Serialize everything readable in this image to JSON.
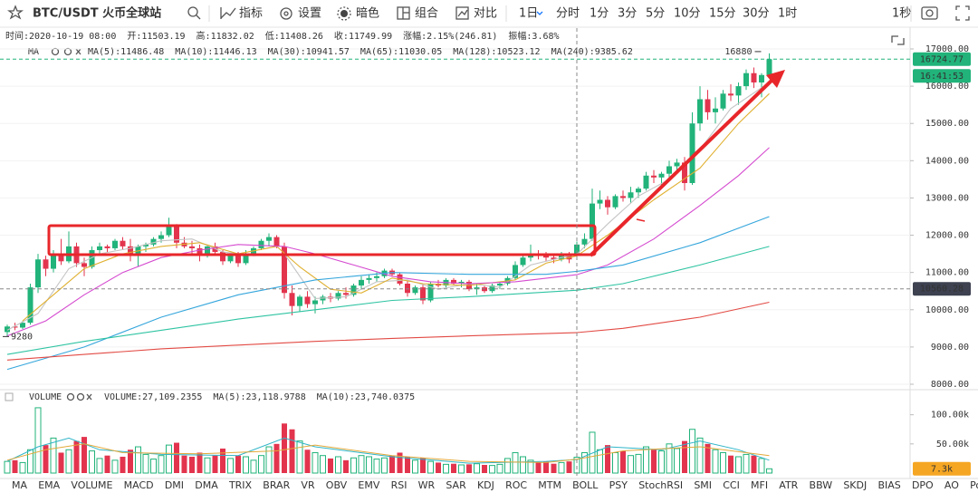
{
  "toolbar": {
    "symbol": "BTC/USDT 火币全球站",
    "tools": [
      "指标",
      "设置",
      "暗色",
      "组合",
      "对比"
    ],
    "intervals": [
      "1日",
      "分时",
      "1分",
      "3分",
      "5分",
      "10分",
      "15分",
      "30分",
      "1时"
    ],
    "clock": "1秒"
  },
  "info": [
    "时间:2020-10-19 08:00",
    "开:11503.19",
    "高:11832.02",
    "低:11408.26",
    "收:11749.99",
    "涨幅:2.15%(246.81)",
    "振幅:3.68%"
  ],
  "chart_data": [
    {
      "type": "candlestick",
      "legend_title": "MA",
      "open": [
        9400,
        9550,
        9520,
        9650,
        10600,
        11350,
        11100,
        11500,
        11300,
        11700,
        11250,
        11150,
        11600,
        11700,
        11650,
        11850,
        11700,
        11450,
        11700,
        11750,
        11900,
        12000,
        12250,
        11800,
        11700,
        11650,
        11500,
        11700,
        11550,
        11300,
        11450,
        11250,
        11500,
        11650,
        11850,
        11950,
        11700,
        10450,
        10100,
        10350,
        10150,
        10250,
        10350,
        10300,
        10450,
        10400,
        10650,
        10800,
        10850,
        10900,
        11050,
        10950,
        10700,
        10450,
        10600,
        10250,
        10700,
        10650,
        10800,
        10700,
        10750,
        10550,
        10600,
        10500,
        10650,
        10700,
        10850,
        11200,
        11400,
        11500,
        11450,
        11400,
        11350,
        11450,
        11503.19,
        11750,
        11900,
        12850,
        12950,
        12750,
        13050,
        13000,
        13150,
        13250,
        13600,
        13550,
        13650,
        13850,
        13950,
        13400,
        15000,
        15650,
        15300,
        15400,
        15800,
        15750,
        16000,
        16350,
        16100,
        16300
      ],
      "high": [
        9600,
        9650,
        9700,
        10700,
        11500,
        11450,
        11600,
        11900,
        12100,
        11800,
        11400,
        11700,
        11800,
        11750,
        11900,
        11950,
        11900,
        11750,
        11800,
        11950,
        12100,
        12470,
        12300,
        11950,
        11850,
        11750,
        11750,
        11800,
        11600,
        11500,
        11550,
        11600,
        11700,
        11900,
        12050,
        12000,
        11800,
        10650,
        10400,
        10500,
        10350,
        10400,
        10450,
        10500,
        10600,
        10700,
        10900,
        10950,
        11000,
        11100,
        11100,
        11000,
        10800,
        10650,
        10700,
        10750,
        10800,
        10850,
        10850,
        10800,
        10800,
        10700,
        10650,
        10700,
        10750,
        10900,
        11300,
        11500,
        11750,
        11600,
        11550,
        11500,
        11550,
        11550,
        11832.02,
        12050,
        13250,
        13200,
        13050,
        13100,
        13200,
        13300,
        13300,
        13700,
        13750,
        13700,
        14000,
        14050,
        14100,
        15300,
        16000,
        15900,
        15700,
        15900,
        16050,
        16100,
        16450,
        16500,
        16350,
        16880
      ],
      "low": [
        9280,
        9450,
        9480,
        9600,
        10450,
        10900,
        11000,
        11200,
        11250,
        11150,
        10900,
        11100,
        11500,
        11550,
        11600,
        11600,
        11300,
        11150,
        11550,
        11700,
        11800,
        11950,
        11650,
        11650,
        11500,
        11300,
        11400,
        11450,
        11200,
        11250,
        11150,
        11200,
        11450,
        11600,
        11700,
        11650,
        10300,
        9850,
        9950,
        10050,
        9900,
        10150,
        10200,
        10250,
        10300,
        10350,
        10550,
        10700,
        10750,
        10850,
        10900,
        10650,
        10350,
        10400,
        10150,
        10200,
        10600,
        10600,
        10650,
        10600,
        10500,
        10400,
        10450,
        10450,
        10550,
        10650,
        10800,
        11150,
        11300,
        11350,
        11300,
        11250,
        11300,
        11250,
        11408.26,
        11650,
        11850,
        12700,
        12550,
        12700,
        12900,
        12850,
        13000,
        13200,
        13400,
        13300,
        13550,
        13700,
        13200,
        13350,
        14800,
        15100,
        15000,
        15350,
        15600,
        15500,
        15900,
        15950,
        15700,
        16250
      ],
      "close": [
        9550,
        9520,
        9650,
        10600,
        11350,
        11100,
        11500,
        11300,
        11700,
        11250,
        11150,
        11600,
        11700,
        11650,
        11850,
        11700,
        11450,
        11700,
        11750,
        11900,
        12000,
        12250,
        11800,
        11700,
        11650,
        11500,
        11700,
        11550,
        11300,
        11450,
        11250,
        11500,
        11650,
        11850,
        11950,
        11700,
        10450,
        10100,
        10350,
        10150,
        10250,
        10350,
        10300,
        10450,
        10400,
        10650,
        10800,
        10850,
        10900,
        11050,
        10950,
        10700,
        10450,
        10600,
        10250,
        10700,
        10650,
        10800,
        10700,
        10750,
        10550,
        10600,
        10500,
        10650,
        10700,
        10850,
        11200,
        11400,
        11500,
        11450,
        11400,
        11350,
        11450,
        11350,
        11749.99,
        11900,
        12850,
        12950,
        12750,
        13050,
        13000,
        13150,
        13250,
        13600,
        13550,
        13650,
        13850,
        13950,
        13400,
        15000,
        15650,
        15300,
        15400,
        15800,
        15750,
        16000,
        16350,
        16100,
        16300,
        16724.77
      ],
      "up_color": "#21b37a",
      "down_color": "#e3344e",
      "ylim": [
        7854,
        17559
      ],
      "yticks": [
        {
          "value": 17000,
          "label": "17000.00"
        },
        {
          "value": 16000,
          "label": "16000.00"
        },
        {
          "value": 15000,
          "label": "15000.00"
        },
        {
          "value": 14000,
          "label": "14000.00"
        },
        {
          "value": 13000,
          "label": "13000.00"
        },
        {
          "value": 12000,
          "label": "12000.00"
        },
        {
          "value": 11000,
          "label": "11000.00"
        },
        {
          "value": 10000,
          "label": "10000.00"
        },
        {
          "value": 9000,
          "label": "9000.00"
        },
        {
          "value": 8000,
          "label": "8000.00"
        }
      ],
      "grid": true,
      "series": [
        {
          "name": "MA(5):11486.48",
          "color": "#c4c4c4",
          "x": [
            0,
            4,
            8,
            12,
            16,
            20,
            24,
            28,
            32,
            36,
            40,
            44,
            48,
            52,
            56,
            60,
            64,
            68,
            72,
            74,
            78,
            82,
            86,
            90,
            94,
            99
          ],
          "values": [
            9450,
            9900,
            11100,
            11500,
            11650,
            11850,
            11900,
            11550,
            11450,
            11500,
            10300,
            10350,
            10750,
            10800,
            10550,
            10700,
            10600,
            11200,
            11400,
            11486.48,
            12300,
            13050,
            13500,
            14300,
            15400,
            16100
          ]
        },
        {
          "name": "MA(10):11446.13",
          "color": "#e0b030",
          "x": [
            2,
            6,
            10,
            15,
            20,
            25,
            30,
            35,
            38,
            42,
            46,
            50,
            54,
            60,
            66,
            70,
            74,
            78,
            84,
            90,
            95,
            99
          ],
          "values": [
            9700,
            10400,
            11100,
            11500,
            11700,
            11800,
            11500,
            11700,
            11150,
            10550,
            10450,
            10850,
            10700,
            10650,
            10800,
            11250,
            11446.13,
            12000,
            12950,
            13800,
            15000,
            15800
          ]
        },
        {
          "name": "MA(30):10941.57",
          "color": "#d54bd0",
          "x": [
            0,
            5,
            10,
            15,
            20,
            25,
            30,
            36,
            40,
            45,
            50,
            55,
            60,
            66,
            74,
            78,
            84,
            90,
            95,
            99
          ],
          "values": [
            9300,
            9700,
            10400,
            11000,
            11400,
            11600,
            11750,
            11700,
            11500,
            11200,
            10900,
            10750,
            10700,
            10750,
            10941.57,
            11200,
            11900,
            12800,
            13600,
            14350
          ]
        },
        {
          "name": "MA(65):11030.05",
          "color": "#35a6dc",
          "x": [
            0,
            10,
            20,
            30,
            40,
            50,
            60,
            70,
            74,
            80,
            90,
            99
          ],
          "values": [
            8400,
            9000,
            9800,
            10400,
            10800,
            11000,
            10950,
            10950,
            11030.05,
            11200,
            11800,
            12500
          ]
        },
        {
          "name": "MA(128):10523.12",
          "color": "#2fc4a2",
          "x": [
            0,
            10,
            20,
            30,
            40,
            50,
            60,
            74,
            80,
            90,
            99
          ],
          "values": [
            8800,
            9150,
            9450,
            9750,
            10000,
            10250,
            10350,
            10523.12,
            10700,
            11200,
            11700
          ]
        },
        {
          "name": "MA(240):9385.62",
          "color": "#e24a44",
          "x": [
            0,
            10,
            20,
            30,
            40,
            50,
            60,
            74,
            80,
            90,
            99
          ],
          "values": [
            8650,
            8800,
            8950,
            9050,
            9150,
            9230,
            9300,
            9385.62,
            9500,
            9800,
            10200
          ]
        }
      ],
      "last_time": "16:41:53",
      "crosshair_price": 10560.28
    },
    {
      "type": "volume",
      "legend_title": "VOLUME",
      "name": "VOLUME:27,109.2355",
      "values": [
        20000,
        22000,
        18000,
        40000,
        112000,
        48000,
        60000,
        35000,
        40000,
        55000,
        62000,
        38000,
        25000,
        30000,
        22000,
        28000,
        40000,
        45000,
        32000,
        24000,
        30000,
        48000,
        52000,
        30000,
        28000,
        35000,
        26000,
        30000,
        42000,
        25000,
        30000,
        28000,
        22000,
        30000,
        45000,
        50000,
        85000,
        75000,
        55000,
        40000,
        35000,
        30000,
        25000,
        28000,
        22000,
        26000,
        30000,
        28000,
        24000,
        26000,
        30000,
        35000,
        28000,
        22000,
        26000,
        20000,
        18000,
        15000,
        16000,
        14000,
        15000,
        16000,
        14000,
        13000,
        15000,
        25000,
        35000,
        28000,
        22000,
        18000,
        20000,
        16000,
        18000,
        20000,
        27109.2355,
        35000,
        70000,
        40000,
        48000,
        35000,
        38000,
        30000,
        32000,
        45000,
        40000,
        38000,
        50000,
        42000,
        55000,
        75000,
        60000,
        50000,
        40000,
        35000,
        30000,
        28000,
        32000,
        30000,
        25000,
        7300
      ],
      "ylim": [
        0,
        115000
      ],
      "yticks": [
        {
          "value": 100000,
          "label": "100.00k"
        },
        {
          "value": 50000,
          "label": "50.00k"
        }
      ],
      "series": [
        {
          "name": "MA(5):23,118.9788",
          "color": "#2fb5c8",
          "x": [
            0,
            4,
            8,
            12,
            20,
            30,
            36,
            40,
            50,
            60,
            70,
            74,
            78,
            85,
            90,
            95,
            99
          ],
          "values": [
            20000,
            45000,
            60000,
            40000,
            32000,
            30000,
            60000,
            45000,
            28000,
            17000,
            20000,
            23118.9788,
            45000,
            40000,
            55000,
            40000,
            22000
          ]
        },
        {
          "name": "MA(10):23,740.0375",
          "color": "#e3a93a",
          "x": [
            0,
            5,
            10,
            15,
            25,
            35,
            40,
            50,
            60,
            70,
            74,
            80,
            90,
            99
          ],
          "values": [
            22000,
            40000,
            50000,
            35000,
            33000,
            38000,
            48000,
            30000,
            20000,
            18000,
            23740.0375,
            38000,
            45000,
            30000
          ]
        }
      ],
      "last_label": "7.3k"
    }
  ],
  "indicators": [
    "MA",
    "EMA",
    "VOLUME",
    "MACD",
    "DMI",
    "DMA",
    "TRIX",
    "BRAR",
    "VR",
    "OBV",
    "EMV",
    "RSI",
    "WR",
    "SAR",
    "KDJ",
    "ROC",
    "MTM",
    "BOLL",
    "PSY",
    "StochRSI",
    "SMI",
    "CCI",
    "MFI",
    "ATR",
    "BBW",
    "SKDJ",
    "BIAS",
    "DPO",
    "AO",
    "Position"
  ]
}
